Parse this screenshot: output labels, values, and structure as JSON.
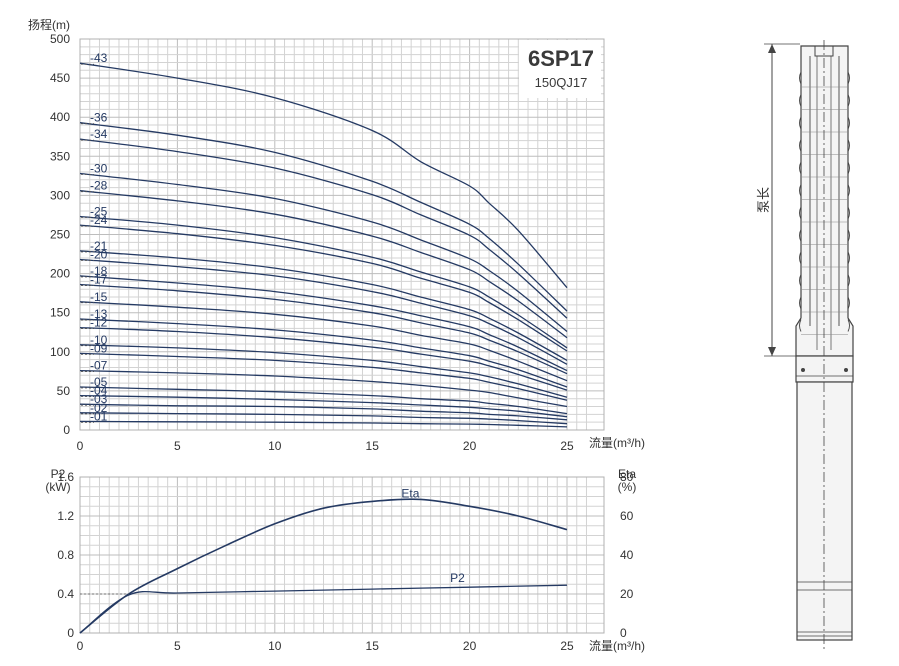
{
  "chart_data": [
    {
      "type": "line",
      "title": "6SP17",
      "subtitle": "150QJ17",
      "ylabel": "扬程(m)",
      "xlabel": "流量(m³/h)",
      "xlim": [
        0,
        25
      ],
      "ylim": [
        0,
        500
      ],
      "xticks": [
        "0",
        "5",
        "10",
        "15",
        "20",
        "25"
      ],
      "yticks": [
        "0",
        "50",
        "100",
        "150",
        "200",
        "250",
        "300",
        "350",
        "400",
        "450",
        "500"
      ],
      "grid": true,
      "x": [
        0,
        5,
        10,
        15,
        17.5,
        20,
        21,
        22.5,
        25
      ],
      "series": [
        {
          "name": "43",
          "values": [
            469,
            450,
            425,
            383,
            343,
            312,
            290,
            255,
            182
          ]
        },
        {
          "name": "36",
          "values": [
            393,
            377,
            355,
            318,
            291,
            263,
            245,
            212,
            152
          ]
        },
        {
          "name": "34",
          "values": [
            372,
            356,
            335,
            301,
            275,
            249,
            231,
            200,
            143
          ]
        },
        {
          "name": "30",
          "values": [
            328,
            314,
            296,
            266,
            243,
            219,
            204,
            177,
            126
          ]
        },
        {
          "name": "28",
          "values": [
            306,
            293,
            276,
            248,
            227,
            205,
            190,
            165,
            118
          ]
        },
        {
          "name": "25",
          "values": [
            273,
            262,
            246,
            221,
            202,
            183,
            170,
            147,
            105
          ]
        },
        {
          "name": "24",
          "values": [
            262,
            251,
            236,
            213,
            194,
            176,
            163,
            141,
            101
          ]
        },
        {
          "name": "21",
          "values": [
            229,
            220,
            207,
            186,
            170,
            154,
            143,
            124,
            89
          ]
        },
        {
          "name": "20",
          "values": [
            218,
            209,
            197,
            177,
            162,
            146,
            136,
            118,
            84
          ]
        },
        {
          "name": "18",
          "values": [
            197,
            188,
            177,
            159,
            146,
            132,
            122,
            106,
            76
          ]
        },
        {
          "name": "17",
          "values": [
            186,
            178,
            167,
            150,
            137,
            124,
            115,
            100,
            72
          ]
        },
        {
          "name": "15",
          "values": [
            164,
            157,
            148,
            133,
            121,
            110,
            102,
            88,
            63
          ]
        },
        {
          "name": "13",
          "values": [
            142,
            136,
            128,
            115,
            105,
            95,
            88,
            77,
            55
          ]
        },
        {
          "name": "12",
          "values": [
            131,
            126,
            118,
            106,
            97,
            88,
            82,
            71,
            51
          ]
        },
        {
          "name": "10",
          "values": [
            109,
            105,
            99,
            89,
            81,
            73,
            68,
            59,
            42
          ]
        },
        {
          "name": "09",
          "values": [
            98,
            94,
            89,
            80,
            73,
            66,
            61,
            53,
            38
          ]
        },
        {
          "name": "07",
          "values": [
            76,
            73,
            69,
            62,
            57,
            51,
            48,
            41,
            30
          ]
        },
        {
          "name": "05",
          "values": [
            55,
            52,
            49,
            44,
            40,
            37,
            34,
            30,
            21
          ]
        },
        {
          "name": "04",
          "values": [
            44,
            42,
            39,
            35,
            32,
            29,
            27,
            24,
            17
          ]
        },
        {
          "name": "03",
          "values": [
            33,
            31,
            30,
            27,
            24,
            22,
            20,
            18,
            13
          ]
        },
        {
          "name": "02",
          "values": [
            22,
            21,
            20,
            18,
            16,
            15,
            14,
            12,
            8
          ]
        },
        {
          "name": "01",
          "values": [
            11,
            10.5,
            10,
            9,
            8,
            7.5,
            7,
            6,
            4
          ]
        }
      ]
    },
    {
      "type": "line",
      "ylabel": "P2\n(kW)",
      "y2label": "Eta\n(%)",
      "xlabel": "流量(m³/h)",
      "xlim": [
        0,
        25
      ],
      "ylim": [
        0,
        1.6
      ],
      "y2lim": [
        0,
        80
      ],
      "xticks": [
        "0",
        "5",
        "10",
        "15",
        "20",
        "25"
      ],
      "yticks": [
        "0",
        "0.4",
        "0.8",
        "1.2",
        "1.6"
      ],
      "y2ticks": [
        "0",
        "20",
        "40",
        "60",
        "80"
      ],
      "grid": true,
      "series": [
        {
          "name": "Eta",
          "axis": "right",
          "x": [
            0,
            2.5,
            5,
            7.5,
            10,
            12.5,
            15,
            17.5,
            20,
            22.5,
            25
          ],
          "values": [
            0,
            20,
            33,
            45,
            56,
            64,
            67.5,
            68.5,
            65,
            60,
            53
          ]
        },
        {
          "name": "P2",
          "axis": "left",
          "x": [
            0,
            2.5,
            5,
            10,
            15,
            20,
            25
          ],
          "values": [
            0,
            0.39,
            0.41,
            0.43,
            0.45,
            0.47,
            0.49
          ]
        }
      ]
    }
  ],
  "drawing": {
    "dimension_label": "泵长"
  }
}
